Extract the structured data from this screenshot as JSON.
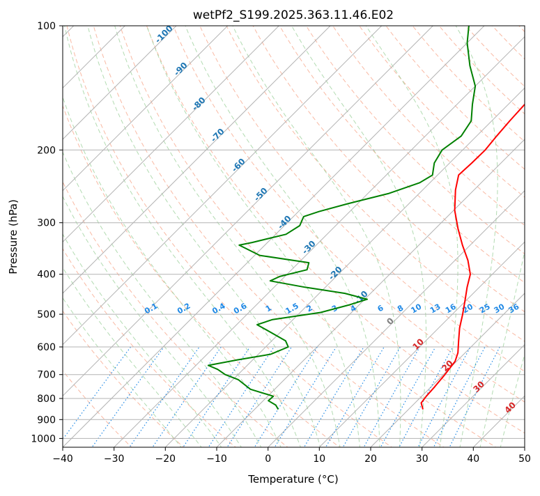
{
  "chart_data": {
    "type": "skew-t log-p",
    "title": "wetPf2_S199.2025.363.11.46.E02",
    "xlabel": "Temperature (°C)",
    "ylabel": "Pressure (hPa)",
    "xlim": [
      -40,
      50
    ],
    "ylim": [
      1050,
      100
    ],
    "x_ticks": [
      "−40",
      "−30",
      "−20",
      "−10",
      "0",
      "10",
      "20",
      "30",
      "40",
      "50"
    ],
    "x_tick_values": [
      -40,
      -30,
      -20,
      -10,
      0,
      10,
      20,
      30,
      40,
      50
    ],
    "y_ticks": [
      "100",
      "200",
      "300",
      "400",
      "500",
      "600",
      "700",
      "800",
      "900",
      "1000"
    ],
    "y_tick_values": [
      100,
      200,
      300,
      400,
      500,
      600,
      700,
      800,
      900,
      1000
    ],
    "grid": true,
    "series": [
      {
        "name": "temperature",
        "color": "#ff0000",
        "points": [
          {
            "p": 850,
            "t": 22.8
          },
          {
            "p": 820,
            "t": 21.2
          },
          {
            "p": 790,
            "t": 20.9
          },
          {
            "p": 750,
            "t": 20.7
          },
          {
            "p": 700,
            "t": 20.3
          },
          {
            "p": 650,
            "t": 19.7
          },
          {
            "p": 620,
            "t": 18.6
          },
          {
            "p": 580,
            "t": 16.4
          },
          {
            "p": 540,
            "t": 14.1
          },
          {
            "p": 500,
            "t": 12.0
          },
          {
            "p": 460,
            "t": 9.6
          },
          {
            "p": 430,
            "t": 7.6
          },
          {
            "p": 400,
            "t": 5.7
          },
          {
            "p": 370,
            "t": 2.5
          },
          {
            "p": 340,
            "t": -1.5
          },
          {
            "p": 310,
            "t": -5.6
          },
          {
            "p": 280,
            "t": -9.8
          },
          {
            "p": 250,
            "t": -13.6
          },
          {
            "p": 230,
            "t": -15.9
          },
          {
            "p": 215,
            "t": -15.7
          },
          {
            "p": 200,
            "t": -15.6
          },
          {
            "p": 185,
            "t": -16.1
          },
          {
            "p": 170,
            "t": -16.5
          },
          {
            "p": 155,
            "t": -16.8
          },
          {
            "p": 140,
            "t": -17.9
          },
          {
            "p": 125,
            "t": -19.0
          },
          {
            "p": 112,
            "t": -21.0
          },
          {
            "p": 100,
            "t": -23.5
          }
        ]
      },
      {
        "name": "dewpoint",
        "color": "#008000",
        "points": [
          {
            "p": 850,
            "t": -5.4
          },
          {
            "p": 830,
            "t": -6.7
          },
          {
            "p": 810,
            "t": -9.0
          },
          {
            "p": 790,
            "t": -8.9
          },
          {
            "p": 760,
            "t": -14.7
          },
          {
            "p": 720,
            "t": -19.0
          },
          {
            "p": 700,
            "t": -22.5
          },
          {
            "p": 680,
            "t": -25.0
          },
          {
            "p": 665,
            "t": -27.6
          },
          {
            "p": 645,
            "t": -23.0
          },
          {
            "p": 625,
            "t": -17.6
          },
          {
            "p": 600,
            "t": -15.6
          },
          {
            "p": 580,
            "t": -17.3
          },
          {
            "p": 550,
            "t": -22.4
          },
          {
            "p": 530,
            "t": -26.0
          },
          {
            "p": 515,
            "t": -24.0
          },
          {
            "p": 495,
            "t": -16.0
          },
          {
            "p": 475,
            "t": -12.0
          },
          {
            "p": 460,
            "t": -9.5
          },
          {
            "p": 445,
            "t": -15.0
          },
          {
            "p": 430,
            "t": -24.0
          },
          {
            "p": 415,
            "t": -32.0
          },
          {
            "p": 405,
            "t": -31.0
          },
          {
            "p": 390,
            "t": -27.0
          },
          {
            "p": 375,
            "t": -28.0
          },
          {
            "p": 360,
            "t": -39.0
          },
          {
            "p": 340,
            "t": -45.0
          },
          {
            "p": 335,
            "t": -43.0
          },
          {
            "p": 320,
            "t": -38.0
          },
          {
            "p": 305,
            "t": -37.0
          },
          {
            "p": 290,
            "t": -38.0
          },
          {
            "p": 282,
            "t": -36.0
          },
          {
            "p": 270,
            "t": -32.0
          },
          {
            "p": 255,
            "t": -26.0
          },
          {
            "p": 240,
            "t": -22.0
          },
          {
            "p": 230,
            "t": -21.0
          },
          {
            "p": 215,
            "t": -23.0
          },
          {
            "p": 200,
            "t": -24.0
          },
          {
            "p": 185,
            "t": -23.0
          },
          {
            "p": 170,
            "t": -24.0
          },
          {
            "p": 155,
            "t": -27.0
          },
          {
            "p": 140,
            "t": -30.0
          },
          {
            "p": 125,
            "t": -35.0
          },
          {
            "p": 110,
            "t": -40.0
          },
          {
            "p": 100,
            "t": -43.0
          }
        ]
      }
    ],
    "moist_adiabat_labels": [
      "-100",
      "-90",
      "-80",
      "-70",
      "-60",
      "-50",
      "-40",
      "-30",
      "-20",
      "-10"
    ],
    "mixing_ratio_labels": [
      "0.1",
      "0.2",
      "0.4",
      "0.6",
      "1",
      "1.5",
      "2",
      "3",
      "4",
      "6",
      "8",
      "10",
      "13",
      "16",
      "20",
      "25",
      "30",
      "36"
    ],
    "mixing_ratio_values": [
      0.1,
      0.2,
      0.4,
      0.6,
      1,
      1.5,
      2,
      3,
      4,
      6,
      8,
      10,
      13,
      16,
      20,
      25,
      30,
      36
    ],
    "dry_adiabat_labels": [
      "0",
      "10",
      "20",
      "30",
      "40"
    ]
  },
  "colors": {
    "temperature": "#ff0000",
    "dewpoint": "#008000",
    "isotherm": "#b3b3b3",
    "dry_adiabat": "#f7a184",
    "moist_adiabat": "#98cf97",
    "mixing_ratio": "#1e88e5",
    "dry_label": "#d62728",
    "moist_label": "#1f77b4",
    "mixing_label": "#1e88e5"
  }
}
